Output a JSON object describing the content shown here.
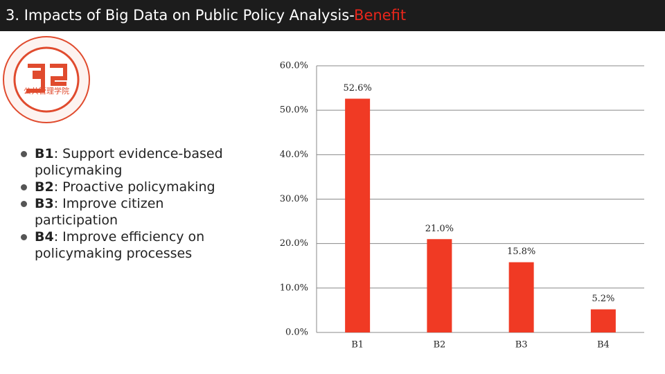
{
  "header": {
    "title": "3. Impacts of Big Data on Public Policy Analysis-",
    "highlight": "Benefit"
  },
  "logo": {
    "text": "公共管理学院"
  },
  "bullets": [
    {
      "label": "B1",
      "text": ": Support evidence-based policymaking"
    },
    {
      "label": "B2",
      "text": ": Proactive policymaking"
    },
    {
      "label": "B3",
      "text": ": Improve citizen participation"
    },
    {
      "label": "B4",
      "text": ": Improve efficiency on policymaking processes"
    }
  ],
  "chart_data": {
    "type": "bar",
    "categories": [
      "B1",
      "B2",
      "B3",
      "B4"
    ],
    "values": [
      52.6,
      21.0,
      15.8,
      5.2
    ],
    "value_labels": [
      "52.6%",
      "21.0%",
      "15.8%",
      "5.2%"
    ],
    "color": "#f03a24",
    "ylim": [
      0,
      60
    ],
    "yticks": [
      {
        "value": 0,
        "label": "0.0%"
      },
      {
        "value": 10,
        "label": "10.0%"
      },
      {
        "value": 20,
        "label": "20.0%"
      },
      {
        "value": 30,
        "label": "30.0%"
      },
      {
        "value": 40,
        "label": "40.0%"
      },
      {
        "value": 50,
        "label": "50.0%"
      },
      {
        "value": 60,
        "label": "60.0%"
      }
    ],
    "grid": true
  }
}
